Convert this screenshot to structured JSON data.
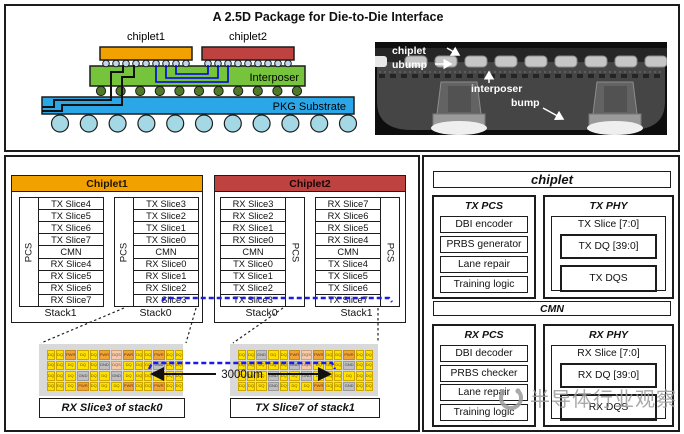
{
  "colors": {
    "chiplet1": "#F2A200",
    "chiplet2": "#BE4340",
    "interposer": "#76C33C",
    "substrate": "#2BA7E8",
    "ubump": "#BDD7EE",
    "midbump": "#4F7A28",
    "ball": "#A5D8E5",
    "linkBlue": "#1A1AEE",
    "cellDQ": "#FFE100",
    "cellPWR": "#F2A336",
    "cellGND": "#BFBFBF",
    "cellDQS": "#F6C9A8"
  },
  "top": {
    "title": "A 2.5D Package for Die-to-Die Interface",
    "pkg": {
      "chiplet1": "chiplet1",
      "chiplet2": "chiplet2",
      "interposer": "Interposer",
      "substrate": "PKG Substrate"
    },
    "photo": {
      "chiplet": "chiplet",
      "ubump": "ubump",
      "interposer": "interposer",
      "bump": "bump"
    }
  },
  "mid": {
    "chiplet1": {
      "title": "Chiplet1",
      "stacks": [
        {
          "pcs": "PCS",
          "label": "Stack1",
          "slices": [
            "TX Slice4",
            "TX Slice5",
            "TX Slice6",
            "TX Slice7",
            "CMN",
            "RX Slice4",
            "RX Slice5",
            "RX Slice6",
            "RX Slice7"
          ]
        },
        {
          "pcs": "PCS",
          "label": "Stack0",
          "slices": [
            "TX Slice3",
            "TX Slice2",
            "TX Slice1",
            "TX Slice0",
            "CMN",
            "RX Slice0",
            "RX Slice1",
            "RX Slice2",
            "RX Slice3"
          ]
        }
      ]
    },
    "chiplet2": {
      "title": "Chiplet2",
      "stacks": [
        {
          "pcs": "PCS",
          "label": "Stack0",
          "slices": [
            "RX Slice3",
            "RX Slice2",
            "RX Slice1",
            "RX Slice0",
            "CMN",
            "TX Slice0",
            "TX Slice1",
            "TX Slice2",
            "TX Slice3"
          ]
        },
        {
          "pcs": "PCS",
          "label": "Stack1",
          "slices": [
            "RX Slice7",
            "RX Slice6",
            "RX Slice5",
            "RX Slice4",
            "CMN",
            "TX Slice4",
            "TX Slice5",
            "TX Slice6",
            "TX Slice7"
          ]
        }
      ]
    },
    "distance": "3000um",
    "maps": [
      {
        "caption": "RX Slice3 of stack0",
        "grid": [
          [
            "DQ",
            "DQ",
            "PWR",
            "DQ",
            "DQ",
            "PWR",
            "DQS",
            "PWR",
            "DQ",
            "DQ",
            "PWR",
            "DQ",
            "DQ"
          ],
          [
            "DQ",
            "DQ",
            "DQ",
            "DQ",
            "DQ",
            "GND",
            "DQS",
            "DQ",
            "DQ",
            "DQ",
            "GND",
            "DQ",
            "DQ"
          ],
          [
            "DQ",
            "DQ",
            "DQ",
            "GND",
            "DQ",
            "DQ",
            "GND",
            "DQ",
            "DQ",
            "DQ",
            "DQ",
            "DQ",
            "DQ"
          ],
          [
            "DQ",
            "DQ",
            "DQ",
            "PWR",
            "DQ",
            "DQ",
            "DQ",
            "PWR",
            "DQ",
            "DQ",
            "PWR",
            "DQ",
            "DQ"
          ]
        ]
      },
      {
        "caption": "TX Slice7 of stack1",
        "grid": [
          [
            "DQ",
            "DQ",
            "GND",
            "DQ",
            "DQ",
            "PWR",
            "DQS",
            "PWR",
            "DQ",
            "DQ",
            "PWR",
            "DQ",
            "DQ"
          ],
          [
            "DQ",
            "DQ",
            "DQ",
            "DQ",
            "DQ",
            "GND",
            "DQS",
            "DQ",
            "DQ",
            "DQ",
            "GND",
            "DQ",
            "DQ"
          ],
          [
            "DQ",
            "DQ",
            "DQ",
            "GND",
            "DQ",
            "DQ",
            "GND",
            "DQ",
            "DQ",
            "DQ",
            "DQ",
            "DQ",
            "DQ"
          ],
          [
            "DQ",
            "DQ",
            "DQ",
            "GND",
            "DQ",
            "DQ",
            "DQ",
            "PWR",
            "DQ",
            "DQ",
            "GND",
            "DQ",
            "DQ"
          ]
        ]
      }
    ]
  },
  "right": {
    "title": "chiplet",
    "cmn": "CMN",
    "tx_pcs": {
      "title": "TX PCS",
      "items": [
        "DBI encoder",
        "PRBS generator",
        "Lane repair",
        "Training logic"
      ]
    },
    "tx_phy": {
      "title": "TX PHY",
      "slice": "TX Slice [7:0]",
      "dq": "TX DQ [39:0]",
      "dqs": "TX DQS"
    },
    "rx_pcs": {
      "title": "RX PCS",
      "items": [
        "DBI decoder",
        "PRBS checker",
        "Lane repair",
        "Training logic"
      ]
    },
    "rx_phy": {
      "title": "RX PHY",
      "slice": "RX Slice [7:0]",
      "dq": "RX DQ [39:0]",
      "dqs": "RX DQS"
    }
  },
  "watermark": "半导体行业观察"
}
